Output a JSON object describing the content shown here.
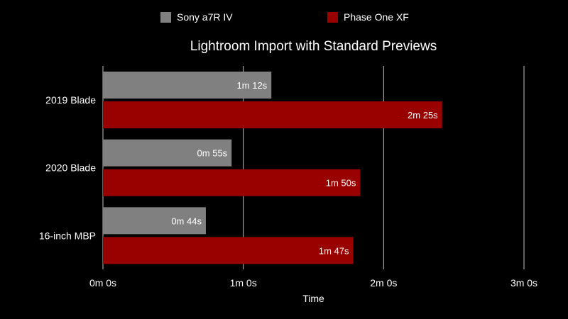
{
  "colors": {
    "background": "#000000",
    "series": [
      "#808080",
      "#990000"
    ],
    "grid": "#bfbfbf",
    "text": "#ffffff"
  },
  "chart_data": {
    "type": "bar",
    "orientation": "horizontal",
    "title": "Lightroom Import with Standard Previews",
    "xlabel": "Time",
    "ylabel": "",
    "xlim": [
      0,
      180
    ],
    "x_unit": "seconds",
    "x_ticks": [
      {
        "value": 0,
        "label": "0m 0s"
      },
      {
        "value": 60,
        "label": "1m 0s"
      },
      {
        "value": 120,
        "label": "2m 0s"
      },
      {
        "value": 180,
        "label": "3m 0s"
      }
    ],
    "grid": true,
    "legend": "top",
    "categories": [
      "2019 Blade",
      "2020 Blade",
      "16-inch MBP"
    ],
    "series": [
      {
        "name": "Sony a7R IV",
        "color": "#808080",
        "values": [
          72,
          55,
          44
        ],
        "labels": [
          "1m 12s",
          "0m 55s",
          "0m 44s"
        ]
      },
      {
        "name": "Phase One XF",
        "color": "#990000",
        "values": [
          145,
          110,
          107
        ],
        "labels": [
          "2m 25s",
          "1m 50s",
          "1m 47s"
        ]
      }
    ]
  }
}
